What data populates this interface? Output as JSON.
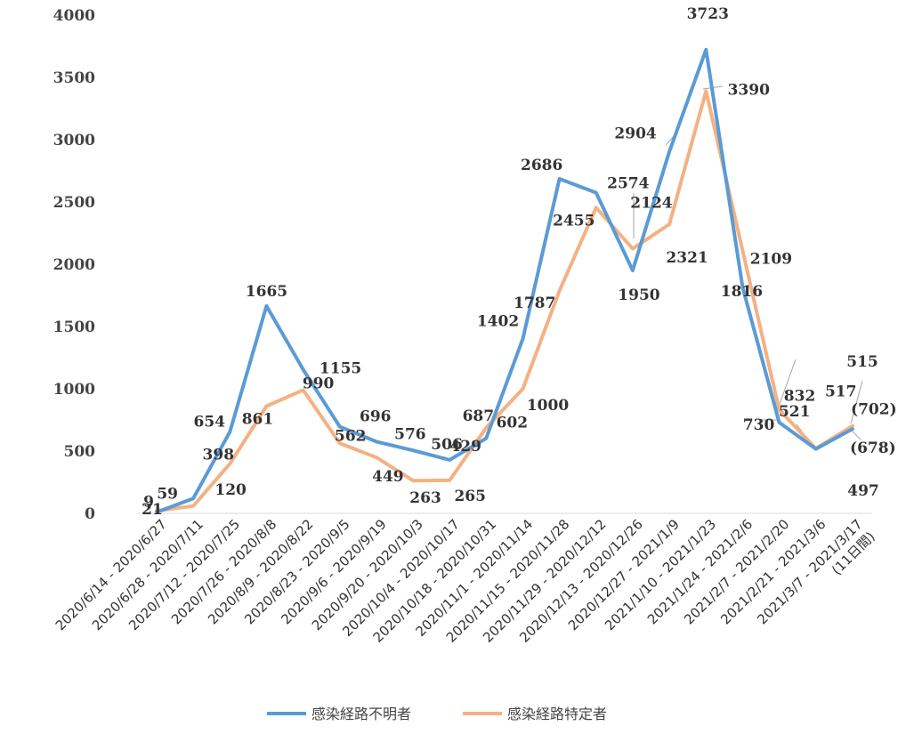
{
  "chart_data": {
    "type": "line",
    "ylim": [
      0,
      4000
    ],
    "yticks": [
      "0",
      "500",
      "1000",
      "1500",
      "2000",
      "2500",
      "3000",
      "3500",
      "4000"
    ],
    "grid": false,
    "legend_position": "bottom",
    "categories": [
      "2020/6/14 - 2020/6/27",
      "2020/6/28 - 2020/7/11",
      "2020/7/12 - 2020/7/25",
      "2020/7/26 - 2020/8/8",
      "2020/8/9 - 2020/8/22",
      "2020/8/23 - 2020/9/5",
      "2020/9/6 - 2020/9/19",
      "2020/9/20 - 2020/10/3",
      "2020/10/4 - 2020/10/17",
      "2020/10/18 - 2020/10/31",
      "2020/11/1 - 2020/11/14",
      "2020/11/15 - 2020/11/28",
      "2020/11/29 - 2020/12/12",
      "2020/12/13 - 2020/12/26",
      "2020/12/27 - 2021/1/9",
      "2021/1/10 - 2021/1/23",
      "2021/1/24 - 2021/2/6",
      "2021/2/7 - 2021/2/20",
      "2021/2/21 - 2021/3/6",
      "2021/3/7 - 2021/3/17"
    ],
    "category_note": "(11日間)",
    "series": [
      {
        "name": "感染経路不明者",
        "color": "#5b9bd5",
        "values": [
          9,
          120,
          654,
          1665,
          1155,
          696,
          576,
          506,
          429,
          602,
          1402,
          2686,
          2574,
          1950,
          2904,
          3723,
          1816,
          730,
          517,
          678
        ],
        "labels": [
          "9",
          "120",
          "654",
          "1665",
          "1155",
          "696",
          "576",
          "506",
          "429",
          "602",
          "1402",
          "2686",
          "2574",
          "1950",
          "2904",
          "3723",
          "1816",
          "730",
          "517",
          "(678)"
        ]
      },
      {
        "name": "感染経路特定者",
        "color": "#f4b183",
        "values": [
          21,
          59,
          398,
          861,
          990,
          562,
          449,
          263,
          265,
          687,
          1000,
          1787,
          2455,
          2124,
          2321,
          3390,
          2109,
          832,
          521,
          702
        ],
        "labels": [
          "21",
          "59",
          "398",
          "861",
          "990",
          "562",
          "449",
          "263",
          "265",
          "687",
          "1000",
          "1787",
          "2455",
          "2124",
          "2321",
          "3390",
          "2109",
          "832",
          "521",
          "(702)"
        ]
      }
    ],
    "extra_labels": [
      "515",
      "497"
    ]
  }
}
